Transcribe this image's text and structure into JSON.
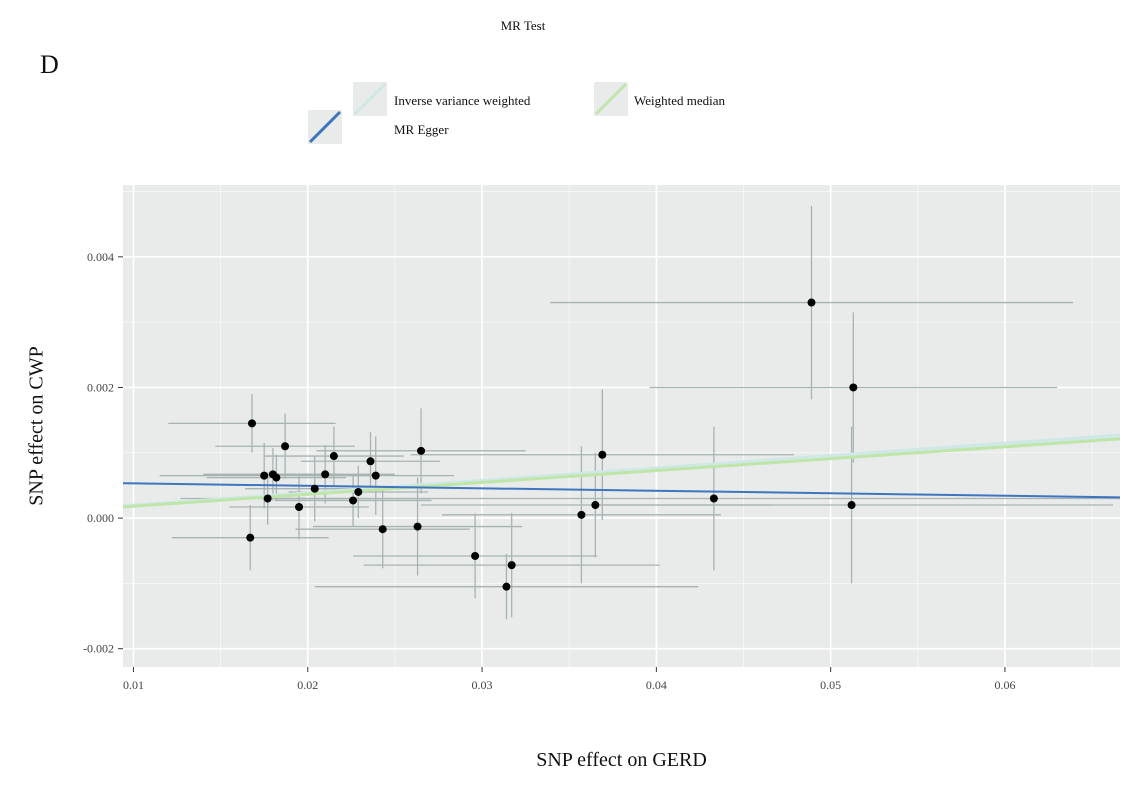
{
  "page": {
    "title": "MR Test",
    "panel_label": "D"
  },
  "chart_data": {
    "type": "scatter",
    "title": "MR Test",
    "xlabel": "SNP effect on GERD",
    "ylabel": "SNP effect on CWP",
    "xlim": [
      0.0094,
      0.0666
    ],
    "ylim": [
      -0.00228,
      0.0051
    ],
    "x_ticks": [
      0.01,
      0.02,
      0.03,
      0.04,
      0.05,
      0.06
    ],
    "x_tick_labels": [
      "0.01",
      "0.02",
      "0.03",
      "0.04",
      "0.05",
      "0.06"
    ],
    "y_ticks": [
      -0.002,
      0.0,
      0.002,
      0.004
    ],
    "y_tick_labels": [
      "-0.002",
      "0.000",
      "0.002",
      "0.004"
    ],
    "grid": true,
    "legend_position": "top",
    "points": [
      {
        "x": 0.0168,
        "y": 0.00145,
        "xerr": 0.0048,
        "yerr": 0.00045
      },
      {
        "x": 0.0175,
        "y": 0.00065,
        "xerr": 0.006,
        "yerr": 0.0005
      },
      {
        "x": 0.0177,
        "y": 0.0003,
        "xerr": 0.005,
        "yerr": 0.0004
      },
      {
        "x": 0.018,
        "y": 0.00067,
        "xerr": 0.004,
        "yerr": 0.0004
      },
      {
        "x": 0.0182,
        "y": 0.00062,
        "xerr": 0.004,
        "yerr": 0.00035
      },
      {
        "x": 0.0187,
        "y": 0.0011,
        "xerr": 0.004,
        "yerr": 0.0005
      },
      {
        "x": 0.0167,
        "y": -0.0003,
        "xerr": 0.0045,
        "yerr": 0.0005
      },
      {
        "x": 0.0195,
        "y": 0.00017,
        "xerr": 0.004,
        "yerr": 0.0005
      },
      {
        "x": 0.0204,
        "y": 0.00045,
        "xerr": 0.004,
        "yerr": 0.0005
      },
      {
        "x": 0.021,
        "y": 0.00067,
        "xerr": 0.004,
        "yerr": 0.00045
      },
      {
        "x": 0.0215,
        "y": 0.00095,
        "xerr": 0.004,
        "yerr": 0.00045
      },
      {
        "x": 0.0226,
        "y": 0.00027,
        "xerr": 0.0045,
        "yerr": 0.0004
      },
      {
        "x": 0.0229,
        "y": 0.0004,
        "xerr": 0.004,
        "yerr": 0.0004
      },
      {
        "x": 0.0236,
        "y": 0.00087,
        "xerr": 0.004,
        "yerr": 0.00045
      },
      {
        "x": 0.0239,
        "y": 0.00065,
        "xerr": 0.0045,
        "yerr": 0.0006
      },
      {
        "x": 0.0243,
        "y": -0.00017,
        "xerr": 0.005,
        "yerr": 0.0006
      },
      {
        "x": 0.0263,
        "y": -0.00013,
        "xerr": 0.006,
        "yerr": 0.00075
      },
      {
        "x": 0.0265,
        "y": 0.00103,
        "xerr": 0.006,
        "yerr": 0.00065
      },
      {
        "x": 0.0296,
        "y": -0.00058,
        "xerr": 0.007,
        "yerr": 0.00065
      },
      {
        "x": 0.0314,
        "y": -0.00105,
        "xerr": 0.011,
        "yerr": 0.0005
      },
      {
        "x": 0.0317,
        "y": -0.00072,
        "xerr": 0.0085,
        "yerr": 0.0008
      },
      {
        "x": 0.0357,
        "y": 5e-05,
        "xerr": 0.008,
        "yerr": 0.00105
      },
      {
        "x": 0.0365,
        "y": 0.0002,
        "xerr": 0.01,
        "yerr": 0.0008
      },
      {
        "x": 0.0369,
        "y": 0.00097,
        "xerr": 0.011,
        "yerr": 0.001
      },
      {
        "x": 0.0433,
        "y": 0.0003,
        "xerr": 0.026,
        "yerr": 0.0011
      },
      {
        "x": 0.0489,
        "y": 0.0033,
        "xerr": 0.015,
        "yerr": 0.00148
      },
      {
        "x": 0.0513,
        "y": 0.002,
        "xerr": 0.0117,
        "yerr": 0.00115
      },
      {
        "x": 0.0512,
        "y": 0.0002,
        "xerr": 0.015,
        "yerr": 0.0012
      }
    ],
    "series": [
      {
        "name": "Inverse variance weighted",
        "color": "#cfe8e6",
        "intercept": 0.0,
        "slope": 0.019
      },
      {
        "name": "Weighted median",
        "color": "#bfe6a8",
        "intercept": 0.0,
        "slope": 0.0182
      },
      {
        "name": "MR Egger",
        "color": "#3f74bf",
        "intercept": 0.00057,
        "slope": -0.0038
      }
    ],
    "colors": {
      "panel": "#e8ebea",
      "grid": "#ffffff",
      "error_bar": "#a7b3b3",
      "point": "#000000"
    }
  }
}
